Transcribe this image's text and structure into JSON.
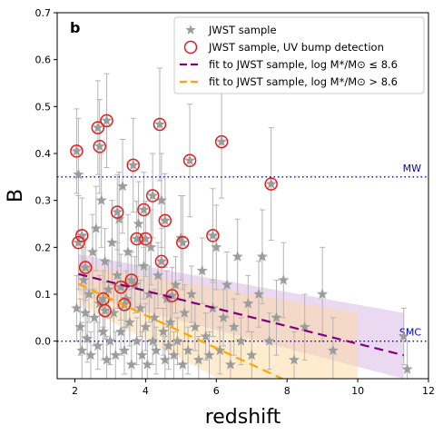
{
  "chart_data": {
    "type": "scatter",
    "panel_label": "b",
    "xlabel": "redshift",
    "ylabel": "B",
    "xlim": [
      1.5,
      12
    ],
    "ylim": [
      -0.08,
      0.7
    ],
    "xticks": [
      "2",
      "4",
      "6",
      "8",
      "10",
      "12"
    ],
    "yticks": [
      "0.0",
      "0.1",
      "0.2",
      "0.3",
      "0.4",
      "0.5",
      "0.6",
      "0.7"
    ],
    "grid": false,
    "legend_position": "top-right",
    "legend": [
      {
        "key": "sample",
        "label": "JWST sample"
      },
      {
        "key": "bump",
        "label": "JWST sample, UV bump detection"
      },
      {
        "key": "fit_low",
        "label": "fit to JWST sample,  log M*/M⊙ ≤ 8.6"
      },
      {
        "key": "fit_high",
        "label": "fit to JWST sample, log M*/M⊙ > 8.6"
      }
    ],
    "reference_lines": [
      {
        "label": "MW",
        "y": 0.35,
        "color": "#0000cc"
      },
      {
        "label": "SMC",
        "y": 0.0,
        "color": "#0000cc"
      }
    ],
    "fits": [
      {
        "key": "fit_low",
        "color": "#800080",
        "x": [
          2.1,
          11.3
        ],
        "y": [
          0.143,
          -0.03
        ],
        "band_top": [
          0.185,
          0.06
        ],
        "band_bottom": [
          0.1,
          -0.08
        ],
        "band_color": "#d6b3e3"
      },
      {
        "key": "fit_high",
        "color": "#ffa500",
        "x": [
          2.1,
          10.0
        ],
        "y": [
          0.122,
          -0.155
        ],
        "band_top": [
          0.165,
          0.06
        ],
        "band_bottom": [
          0.08,
          -0.24
        ],
        "band_color": "#ffd9a0"
      }
    ],
    "bump_detections": [
      {
        "x": 2.05,
        "y": 0.405,
        "err": 0.09
      },
      {
        "x": 2.1,
        "y": 0.21,
        "err": 0.1
      },
      {
        "x": 2.2,
        "y": 0.225,
        "err": 0.08
      },
      {
        "x": 2.3,
        "y": 0.157,
        "err": 0.07
      },
      {
        "x": 2.65,
        "y": 0.455,
        "err": 0.1
      },
      {
        "x": 2.7,
        "y": 0.415,
        "err": 0.1
      },
      {
        "x": 2.8,
        "y": 0.09,
        "err": 0.06
      },
      {
        "x": 2.85,
        "y": 0.065,
        "err": 0.06
      },
      {
        "x": 2.9,
        "y": 0.47,
        "err": 0.1
      },
      {
        "x": 3.2,
        "y": 0.275,
        "err": 0.08
      },
      {
        "x": 3.3,
        "y": 0.115,
        "err": 0.07
      },
      {
        "x": 3.4,
        "y": 0.078,
        "err": 0.05
      },
      {
        "x": 3.6,
        "y": 0.13,
        "err": 0.06
      },
      {
        "x": 3.65,
        "y": 0.375,
        "err": 0.1
      },
      {
        "x": 3.75,
        "y": 0.218,
        "err": 0.08
      },
      {
        "x": 3.95,
        "y": 0.28,
        "err": 0.08
      },
      {
        "x": 4.0,
        "y": 0.218,
        "err": 0.08
      },
      {
        "x": 4.2,
        "y": 0.31,
        "err": 0.09
      },
      {
        "x": 4.4,
        "y": 0.462,
        "err": 0.12
      },
      {
        "x": 4.45,
        "y": 0.17,
        "err": 0.07
      },
      {
        "x": 4.55,
        "y": 0.257,
        "err": 0.1
      },
      {
        "x": 4.75,
        "y": 0.097,
        "err": 0.06
      },
      {
        "x": 5.05,
        "y": 0.21,
        "err": 0.1
      },
      {
        "x": 5.25,
        "y": 0.385,
        "err": 0.12
      },
      {
        "x": 5.9,
        "y": 0.225,
        "err": 0.1
      },
      {
        "x": 6.15,
        "y": 0.425,
        "err": 0.12
      },
      {
        "x": 7.55,
        "y": 0.335,
        "err": 0.12
      }
    ],
    "sample_points": [
      {
        "x": 2.05,
        "y": 0.07,
        "err": 0.07
      },
      {
        "x": 2.1,
        "y": 0.355,
        "err": 0.12
      },
      {
        "x": 2.15,
        "y": 0.03,
        "err": 0.06
      },
      {
        "x": 2.2,
        "y": -0.02,
        "err": 0.06
      },
      {
        "x": 2.25,
        "y": 0.13,
        "err": 0.07
      },
      {
        "x": 2.3,
        "y": 0.06,
        "err": 0.05
      },
      {
        "x": 2.35,
        "y": 0.005,
        "err": 0.05
      },
      {
        "x": 2.4,
        "y": 0.1,
        "err": 0.06
      },
      {
        "x": 2.45,
        "y": -0.03,
        "err": 0.05
      },
      {
        "x": 2.5,
        "y": 0.19,
        "err": 0.08
      },
      {
        "x": 2.55,
        "y": 0.05,
        "err": 0.06
      },
      {
        "x": 2.6,
        "y": 0.24,
        "err": 0.09
      },
      {
        "x": 2.65,
        "y": -0.01,
        "err": 0.05
      },
      {
        "x": 2.7,
        "y": 0.08,
        "err": 0.06
      },
      {
        "x": 2.75,
        "y": 0.3,
        "err": 0.1
      },
      {
        "x": 2.8,
        "y": 0.02,
        "err": 0.06
      },
      {
        "x": 2.85,
        "y": 0.17,
        "err": 0.07
      },
      {
        "x": 2.9,
        "y": -0.04,
        "err": 0.05
      },
      {
        "x": 2.95,
        "y": 0.11,
        "err": 0.06
      },
      {
        "x": 3.0,
        "y": 0.0,
        "err": 0.05
      },
      {
        "x": 3.05,
        "y": 0.21,
        "err": 0.09
      },
      {
        "x": 3.1,
        "y": 0.06,
        "err": 0.06
      },
      {
        "x": 3.15,
        "y": -0.03,
        "err": 0.05
      },
      {
        "x": 3.2,
        "y": 0.14,
        "err": 0.07
      },
      {
        "x": 3.25,
        "y": 0.26,
        "err": 0.1
      },
      {
        "x": 3.3,
        "y": 0.02,
        "err": 0.05
      },
      {
        "x": 3.35,
        "y": 0.33,
        "err": 0.1
      },
      {
        "x": 3.4,
        "y": -0.02,
        "err": 0.05
      },
      {
        "x": 3.45,
        "y": 0.09,
        "err": 0.06
      },
      {
        "x": 3.5,
        "y": 0.19,
        "err": 0.08
      },
      {
        "x": 3.55,
        "y": 0.04,
        "err": 0.05
      },
      {
        "x": 3.6,
        "y": -0.05,
        "err": 0.05
      },
      {
        "x": 3.7,
        "y": 0.12,
        "err": 0.06
      },
      {
        "x": 3.75,
        "y": 0.0,
        "err": 0.05
      },
      {
        "x": 3.8,
        "y": 0.25,
        "err": 0.09
      },
      {
        "x": 3.85,
        "y": 0.07,
        "err": 0.06
      },
      {
        "x": 3.9,
        "y": -0.03,
        "err": 0.05
      },
      {
        "x": 3.95,
        "y": 0.16,
        "err": 0.07
      },
      {
        "x": 4.0,
        "y": 0.03,
        "err": 0.05
      },
      {
        "x": 4.05,
        "y": -0.05,
        "err": 0.05
      },
      {
        "x": 4.1,
        "y": 0.1,
        "err": 0.06
      },
      {
        "x": 4.15,
        "y": 0.2,
        "err": 0.08
      },
      {
        "x": 4.2,
        "y": 0.0,
        "err": 0.05
      },
      {
        "x": 4.25,
        "y": 0.05,
        "err": 0.06
      },
      {
        "x": 4.3,
        "y": -0.02,
        "err": 0.05
      },
      {
        "x": 4.35,
        "y": 0.14,
        "err": 0.07
      },
      {
        "x": 4.45,
        "y": 0.3,
        "err": 0.1
      },
      {
        "x": 4.5,
        "y": 0.02,
        "err": 0.05
      },
      {
        "x": 4.55,
        "y": -0.04,
        "err": 0.05
      },
      {
        "x": 4.6,
        "y": 0.09,
        "err": 0.06
      },
      {
        "x": 4.65,
        "y": -0.01,
        "err": 0.05
      },
      {
        "x": 4.7,
        "y": 0.04,
        "err": 0.05
      },
      {
        "x": 4.8,
        "y": -0.03,
        "err": 0.05
      },
      {
        "x": 4.85,
        "y": 0.12,
        "err": 0.06
      },
      {
        "x": 4.9,
        "y": 0.0,
        "err": 0.05
      },
      {
        "x": 5.0,
        "y": 0.22,
        "err": 0.09
      },
      {
        "x": 5.05,
        "y": -0.05,
        "err": 0.05
      },
      {
        "x": 5.1,
        "y": 0.06,
        "err": 0.06
      },
      {
        "x": 5.2,
        "y": -0.02,
        "err": 0.05
      },
      {
        "x": 5.3,
        "y": 0.1,
        "err": 0.06
      },
      {
        "x": 5.4,
        "y": 0.03,
        "err": 0.05
      },
      {
        "x": 5.5,
        "y": -0.04,
        "err": 0.05
      },
      {
        "x": 5.6,
        "y": 0.15,
        "err": 0.07
      },
      {
        "x": 5.7,
        "y": 0.01,
        "err": 0.05
      },
      {
        "x": 5.8,
        "y": -0.03,
        "err": 0.05
      },
      {
        "x": 5.9,
        "y": 0.07,
        "err": 0.06
      },
      {
        "x": 6.0,
        "y": 0.2,
        "err": 0.09
      },
      {
        "x": 6.1,
        "y": -0.02,
        "err": 0.05
      },
      {
        "x": 6.2,
        "y": 0.05,
        "err": 0.06
      },
      {
        "x": 6.3,
        "y": 0.12,
        "err": 0.07
      },
      {
        "x": 6.4,
        "y": -0.05,
        "err": 0.05
      },
      {
        "x": 6.5,
        "y": 0.03,
        "err": 0.06
      },
      {
        "x": 6.6,
        "y": 0.18,
        "err": 0.08
      },
      {
        "x": 6.7,
        "y": 0.0,
        "err": 0.05
      },
      {
        "x": 6.9,
        "y": 0.08,
        "err": 0.06
      },
      {
        "x": 7.0,
        "y": -0.03,
        "err": 0.05
      },
      {
        "x": 7.2,
        "y": 0.1,
        "err": 0.07
      },
      {
        "x": 7.3,
        "y": 0.18,
        "err": 0.1
      },
      {
        "x": 7.5,
        "y": 0.0,
        "err": 0.06
      },
      {
        "x": 7.7,
        "y": 0.05,
        "err": 0.08
      },
      {
        "x": 7.9,
        "y": 0.13,
        "err": 0.08
      },
      {
        "x": 8.2,
        "y": -0.04,
        "err": 0.06
      },
      {
        "x": 8.5,
        "y": 0.03,
        "err": 0.07
      },
      {
        "x": 9.0,
        "y": 0.1,
        "err": 0.1
      },
      {
        "x": 9.3,
        "y": -0.02,
        "err": 0.07
      },
      {
        "x": 11.3,
        "y": 0.01,
        "err": 0.06
      },
      {
        "x": 11.4,
        "y": -0.06,
        "err": 0.06
      }
    ]
  }
}
